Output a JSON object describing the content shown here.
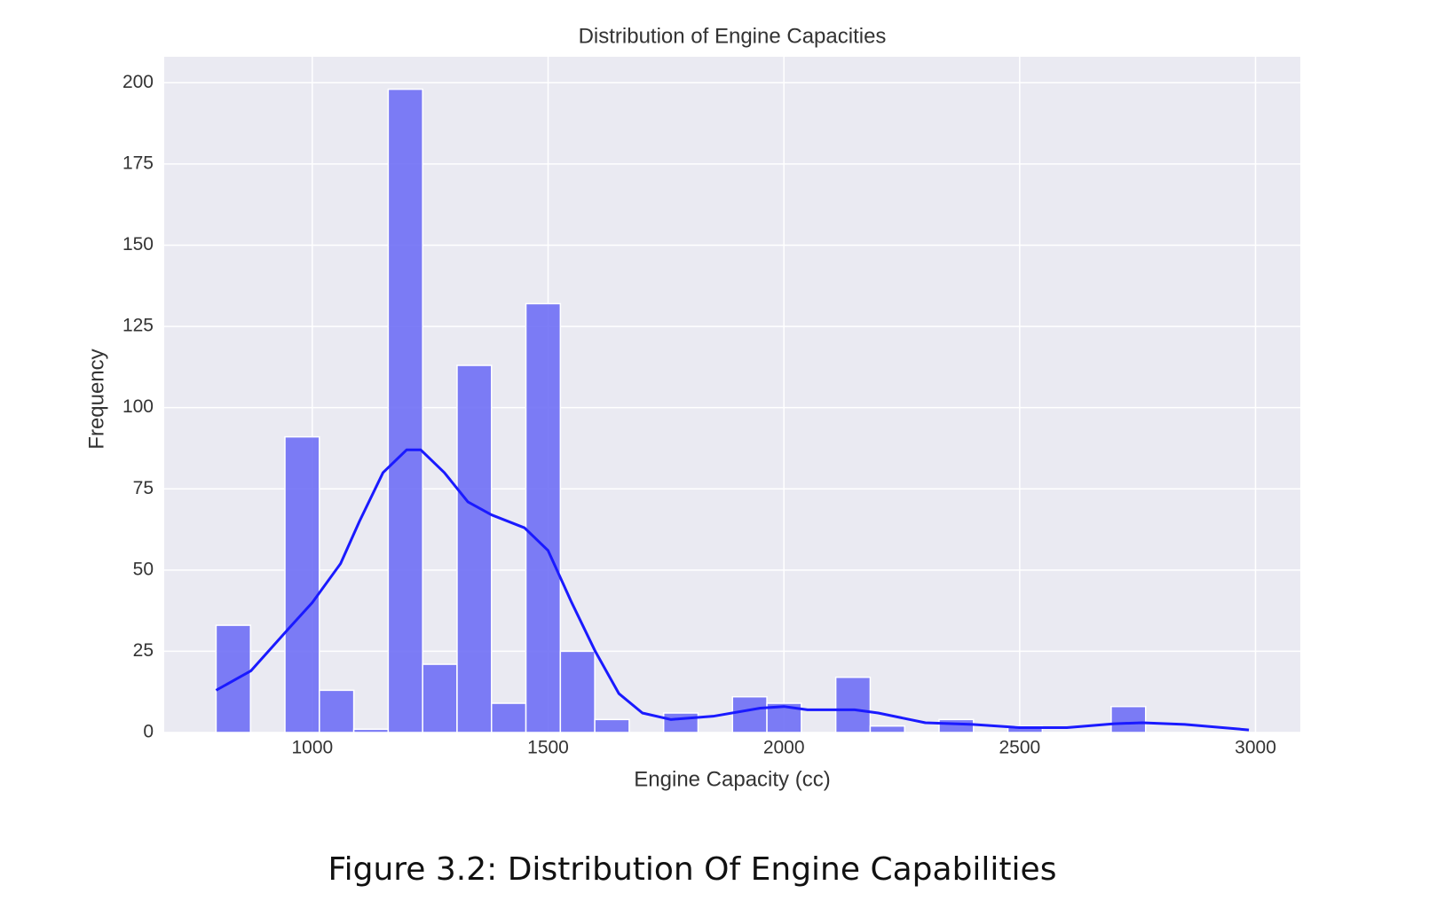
{
  "chart_data": {
    "type": "histogram",
    "title": "Distribution of Engine Capacities",
    "x_label": "Engine Capacity (cc)",
    "y_label": "Frequency",
    "bins": [
      796,
      869,
      942,
      1015,
      1088,
      1161,
      1234,
      1307,
      1380,
      1453,
      1526,
      1599,
      1672,
      1745,
      1818,
      1891,
      1964,
      2037,
      2110,
      2183,
      2256,
      2329,
      2402,
      2475,
      2548,
      2621,
      2694,
      2767,
      2840,
      2913,
      2986
    ],
    "values": [
      33,
      0,
      91,
      13,
      1,
      198,
      21,
      113,
      9,
      132,
      25,
      4,
      0,
      6,
      0,
      11,
      9,
      0,
      17,
      2,
      0,
      4,
      0,
      2,
      0,
      0,
      8,
      0,
      0,
      0
    ],
    "color": "#6f6ff5",
    "kde": {
      "color": "#1a1aff",
      "x": [
        796,
        870,
        950,
        1000,
        1060,
        1100,
        1150,
        1200,
        1230,
        1280,
        1330,
        1380,
        1450,
        1500,
        1550,
        1600,
        1650,
        1700,
        1760,
        1850,
        1950,
        2000,
        2050,
        2150,
        2200,
        2300,
        2400,
        2500,
        2600,
        2700,
        2760,
        2850,
        2986
      ],
      "values": [
        13,
        19,
        32,
        40,
        52,
        65,
        80,
        87,
        87,
        80,
        71,
        67,
        63,
        56,
        40,
        25,
        12,
        6,
        4,
        5,
        7.5,
        8,
        7,
        7,
        6,
        3,
        2.5,
        1.5,
        1.5,
        2.7,
        3,
        2.5,
        0.8
      ]
    },
    "xlim": [
      686,
      3095
    ],
    "ylim": [
      0,
      208
    ],
    "xticks": [
      1000,
      1500,
      2000,
      2500,
      3000
    ],
    "yticks": [
      0,
      25,
      50,
      75,
      100,
      125,
      150,
      175,
      200
    ],
    "grid": true
  },
  "caption": "Figure 3.2: Distribution Of Engine Capabilities"
}
